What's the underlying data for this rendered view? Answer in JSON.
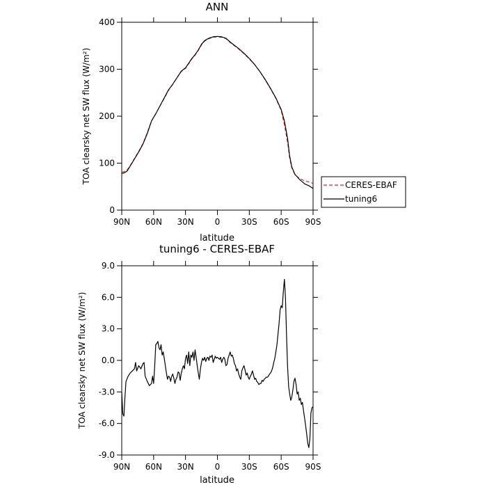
{
  "chart_data": [
    {
      "type": "line",
      "title": "ANN",
      "xlabel": "latitude",
      "ylabel": "TOA clearsky net SW flux (W/m²)",
      "xlim": [
        90,
        -90
      ],
      "ylim": [
        0,
        400
      ],
      "x_ticks": [
        90,
        60,
        30,
        0,
        -30,
        -60,
        -90
      ],
      "x_tick_labels": [
        "90N",
        "60N",
        "30N",
        "0",
        "30S",
        "60S",
        "90S"
      ],
      "y_ticks": [
        0,
        100,
        200,
        300,
        400
      ],
      "y_tick_labels": [
        "0",
        "100",
        "200",
        "300",
        "400"
      ],
      "legend_position": "right",
      "series": [
        {
          "name": "CERES-EBAF",
          "color": "#d62728",
          "dash": "dashed",
          "points": [
            [
              90,
              80
            ],
            [
              88,
              82
            ],
            [
              85,
              85
            ],
            [
              82,
              95
            ],
            [
              78,
              110
            ],
            [
              74,
              125
            ],
            [
              70,
              142
            ],
            [
              66,
              165
            ],
            [
              62,
              190
            ],
            [
              58,
              205
            ],
            [
              54,
              222
            ],
            [
              50,
              238
            ],
            [
              46,
              255
            ],
            [
              42,
              268
            ],
            [
              38,
              282
            ],
            [
              34,
              295
            ],
            [
              30,
              302
            ],
            [
              27,
              312
            ],
            [
              24,
              322
            ],
            [
              21,
              330
            ],
            [
              18,
              340
            ],
            [
              15,
              352
            ],
            [
              12,
              360
            ],
            [
              8,
              365
            ],
            [
              4,
              368
            ],
            [
              0,
              369
            ],
            [
              -4,
              368
            ],
            [
              -8,
              365
            ],
            [
              -12,
              357
            ],
            [
              -16,
              350
            ],
            [
              -20,
              343
            ],
            [
              -25,
              333
            ],
            [
              -30,
              322
            ],
            [
              -35,
              310
            ],
            [
              -40,
              295
            ],
            [
              -45,
              277
            ],
            [
              -50,
              258
            ],
            [
              -55,
              238
            ],
            [
              -60,
              212
            ],
            [
              -63,
              182
            ],
            [
              -66,
              145
            ],
            [
              -68,
              110
            ],
            [
              -70,
              90
            ],
            [
              -73,
              75
            ],
            [
              -77,
              68
            ],
            [
              -82,
              62
            ],
            [
              -86,
              60
            ],
            [
              -90,
              57
            ]
          ]
        },
        {
          "name": "tuning6",
          "color": "#000000",
          "dash": "solid",
          "points": [
            [
              90,
              78
            ],
            [
              88,
              79
            ],
            [
              85,
              83
            ],
            [
              82,
              94
            ],
            [
              78,
              109
            ],
            [
              74,
              124
            ],
            [
              70,
              141
            ],
            [
              66,
              163
            ],
            [
              62,
              190
            ],
            [
              58,
              205
            ],
            [
              54,
              222
            ],
            [
              50,
              239
            ],
            [
              46,
              256
            ],
            [
              42,
              268
            ],
            [
              38,
              282
            ],
            [
              34,
              296
            ],
            [
              30,
              303
            ],
            [
              27,
              313
            ],
            [
              24,
              323
            ],
            [
              21,
              331
            ],
            [
              18,
              341
            ],
            [
              15,
              353
            ],
            [
              12,
              361
            ],
            [
              8,
              366
            ],
            [
              4,
              369
            ],
            [
              0,
              370
            ],
            [
              -4,
              369
            ],
            [
              -8,
              366
            ],
            [
              -12,
              358
            ],
            [
              -16,
              351
            ],
            [
              -20,
              344
            ],
            [
              -25,
              334
            ],
            [
              -30,
              323
            ],
            [
              -35,
              310
            ],
            [
              -40,
              295
            ],
            [
              -45,
              278
            ],
            [
              -50,
              259
            ],
            [
              -55,
              239
            ],
            [
              -60,
              214
            ],
            [
              -63,
              190
            ],
            [
              -66,
              153
            ],
            [
              -68,
              115
            ],
            [
              -70,
              92
            ],
            [
              -73,
              76
            ],
            [
              -77,
              66
            ],
            [
              -82,
              56
            ],
            [
              -86,
              52
            ],
            [
              -90,
              46
            ]
          ]
        }
      ]
    },
    {
      "type": "line",
      "title": "tuning6 - CERES-EBAF",
      "xlabel": "latitude",
      "ylabel": "TOA clearsky net SW flux (W/m²)",
      "xlim": [
        90,
        -90
      ],
      "ylim": [
        -9,
        9
      ],
      "x_ticks": [
        90,
        60,
        30,
        0,
        -30,
        -60,
        -90
      ],
      "x_tick_labels": [
        "90N",
        "60N",
        "30N",
        "0",
        "30S",
        "60S",
        "90S"
      ],
      "y_ticks": [
        -9,
        -6,
        -3,
        0,
        3,
        6,
        9
      ],
      "y_tick_labels": [
        "-9.0",
        "-6.0",
        "-3.0",
        "0.0",
        "3.0",
        "6.0",
        "9.0"
      ],
      "series": [
        {
          "color": "#000000",
          "points": [
            [
              90,
              -3.0
            ],
            [
              89,
              -5.1
            ],
            [
              88,
              -5.3
            ],
            [
              87,
              -3.5
            ],
            [
              86,
              -2.0
            ],
            [
              84,
              -1.5
            ],
            [
              82,
              -1.2
            ],
            [
              80,
              -1.0
            ],
            [
              78,
              -0.8
            ],
            [
              77,
              -0.2
            ],
            [
              76,
              -1.0
            ],
            [
              74,
              -0.5
            ],
            [
              72,
              -0.8
            ],
            [
              70,
              -0.3
            ],
            [
              69,
              -0.2
            ],
            [
              68,
              -1.5
            ],
            [
              66,
              -2.0
            ],
            [
              64,
              -2.4
            ],
            [
              62,
              -2.2
            ],
            [
              61,
              -1.5
            ],
            [
              60,
              -2.2
            ],
            [
              59,
              -0.5
            ],
            [
              58,
              1.5
            ],
            [
              57,
              1.6
            ],
            [
              56,
              1.8
            ],
            [
              55,
              1.2
            ],
            [
              54,
              1.0
            ],
            [
              53,
              1.5
            ],
            [
              52,
              0.5
            ],
            [
              51,
              0.8
            ],
            [
              50,
              0.2
            ],
            [
              49,
              -0.5
            ],
            [
              48,
              -1.2
            ],
            [
              47,
              -1.8
            ],
            [
              46,
              -1.5
            ],
            [
              45,
              -1.6
            ],
            [
              44,
              -2.0
            ],
            [
              43,
              -1.5
            ],
            [
              42,
              -1.3
            ],
            [
              41,
              -1.7
            ],
            [
              40,
              -2.2
            ],
            [
              39,
              -1.8
            ],
            [
              38,
              -1.6
            ],
            [
              37,
              -1.1
            ],
            [
              36,
              -1.2
            ],
            [
              35,
              -1.9
            ],
            [
              34,
              -1.2
            ],
            [
              33,
              -0.8
            ],
            [
              32,
              -0.5
            ],
            [
              31,
              -0.8
            ],
            [
              30,
              0.2
            ],
            [
              29,
              0.5
            ],
            [
              28,
              -0.3
            ],
            [
              27,
              0.8
            ],
            [
              26,
              -0.5
            ],
            [
              25,
              0.5
            ],
            [
              24,
              0.3
            ],
            [
              23,
              0.8
            ],
            [
              22,
              0.0
            ],
            [
              21,
              1.0
            ],
            [
              20,
              0.3
            ],
            [
              19,
              -0.5
            ],
            [
              18,
              -1.2
            ],
            [
              17,
              -1.8
            ],
            [
              16,
              -0.8
            ],
            [
              15,
              -0.2
            ],
            [
              14,
              0.2
            ],
            [
              13,
              0.0
            ],
            [
              12,
              0.3
            ],
            [
              11,
              -0.1
            ],
            [
              10,
              0.2
            ],
            [
              9,
              0.3
            ],
            [
              8,
              0.0
            ],
            [
              7,
              0.4
            ],
            [
              6,
              0.3
            ],
            [
              5,
              0.5
            ],
            [
              4,
              -0.2
            ],
            [
              3,
              0.1
            ],
            [
              2,
              0.4
            ],
            [
              1,
              0.2
            ],
            [
              0,
              0.3
            ],
            [
              -1,
              0.2
            ],
            [
              -2,
              0.1
            ],
            [
              -3,
              0.3
            ],
            [
              -4,
              -0.2
            ],
            [
              -5,
              0.1
            ],
            [
              -6,
              0.3
            ],
            [
              -7,
              0.1
            ],
            [
              -8,
              -0.5
            ],
            [
              -9,
              -0.4
            ],
            [
              -10,
              0.2
            ],
            [
              -11,
              0.5
            ],
            [
              -12,
              0.8
            ],
            [
              -13,
              0.4
            ],
            [
              -14,
              0.5
            ],
            [
              -15,
              0.2
            ],
            [
              -16,
              -0.3
            ],
            [
              -17,
              -0.5
            ],
            [
              -18,
              -1.0
            ],
            [
              -19,
              -0.8
            ],
            [
              -20,
              -1.3
            ],
            [
              -21,
              -1.6
            ],
            [
              -22,
              -1.8
            ],
            [
              -23,
              -1.0
            ],
            [
              -24,
              -0.7
            ],
            [
              -25,
              -0.5
            ],
            [
              -26,
              -0.9
            ],
            [
              -27,
              -1.4
            ],
            [
              -28,
              -1.2
            ],
            [
              -29,
              -1.6
            ],
            [
              -30,
              -1.8
            ],
            [
              -31,
              -1.5
            ],
            [
              -32,
              -1.3
            ],
            [
              -33,
              -1.0
            ],
            [
              -34,
              -1.4
            ],
            [
              -35,
              -1.8
            ],
            [
              -36,
              -1.7
            ],
            [
              -37,
              -2.0
            ],
            [
              -38,
              -2.1
            ],
            [
              -39,
              -2.3
            ],
            [
              -40,
              -2.2
            ],
            [
              -41,
              -2.2
            ],
            [
              -42,
              -1.9
            ],
            [
              -43,
              -2.0
            ],
            [
              -44,
              -1.8
            ],
            [
              -45,
              -1.7
            ],
            [
              -46,
              -1.6
            ],
            [
              -47,
              -1.6
            ],
            [
              -48,
              -1.5
            ],
            [
              -49,
              -1.3
            ],
            [
              -50,
              -1.2
            ],
            [
              -51,
              -1.0
            ],
            [
              -52,
              -0.7
            ],
            [
              -53,
              -0.2
            ],
            [
              -54,
              0.2
            ],
            [
              -55,
              0.8
            ],
            [
              -56,
              1.5
            ],
            [
              -57,
              2.5
            ],
            [
              -58,
              3.5
            ],
            [
              -59,
              4.8
            ],
            [
              -60,
              5.2
            ],
            [
              -61,
              5.0
            ],
            [
              -62,
              6.5
            ],
            [
              -63,
              7.7
            ],
            [
              -64,
              6.0
            ],
            [
              -65,
              2.5
            ],
            [
              -66,
              -0.5
            ],
            [
              -67,
              -2.5
            ],
            [
              -68,
              -3.2
            ],
            [
              -69,
              -3.8
            ],
            [
              -70,
              -3.5
            ],
            [
              -71,
              -2.8
            ],
            [
              -72,
              -2.0
            ],
            [
              -73,
              -1.7
            ],
            [
              -74,
              -2.3
            ],
            [
              -75,
              -3.2
            ],
            [
              -76,
              -3.0
            ],
            [
              -77,
              -3.8
            ],
            [
              -78,
              -3.6
            ],
            [
              -79,
              -4.2
            ],
            [
              -80,
              -4.0
            ],
            [
              -81,
              -4.8
            ],
            [
              -82,
              -5.5
            ],
            [
              -83,
              -6.2
            ],
            [
              -84,
              -7.0
            ],
            [
              -85,
              -7.9
            ],
            [
              -86,
              -8.3
            ],
            [
              -87,
              -7.5
            ],
            [
              -88,
              -5.0
            ],
            [
              -89,
              -4.5
            ],
            [
              -90,
              -4.4
            ]
          ]
        }
      ]
    }
  ]
}
